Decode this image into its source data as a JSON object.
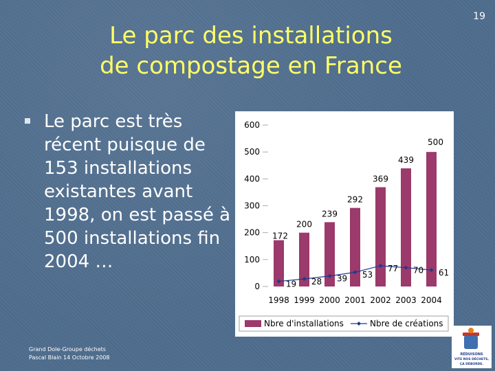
{
  "slide_number": "19",
  "title_line1": "Le parc des installations",
  "title_line2": "de compostage en France",
  "bullet": "Le parc est très récent puisque de 153 installations existantes avant 1998, on est passé à 500 installations fin 2004 …",
  "footer_line1": "Grand Dole-Groupe déchets",
  "footer_line2": "Pascal Blain 14 Octobre 2008",
  "logo": {
    "line1": "RÉDUISONS",
    "line2": "VITE NOS DÉCHETS,",
    "line3": "ÇA DÉBORDE."
  },
  "colors": {
    "title": "#ffff66",
    "bars": "#9b3a6b",
    "line": "#1f3a8c",
    "background": "#4f6d8e"
  },
  "chart_data": {
    "type": "bar",
    "categories": [
      "1998",
      "1999",
      "2000",
      "2001",
      "2002",
      "2003",
      "2004"
    ],
    "series": [
      {
        "name": "Nbre d'installations",
        "type": "bar",
        "values": [
          172,
          200,
          239,
          292,
          369,
          439,
          500
        ]
      },
      {
        "name": "Nbre de créations",
        "type": "line",
        "values": [
          19,
          28,
          39,
          53,
          77,
          70,
          61
        ]
      }
    ],
    "y_ticks": [
      "0",
      "100",
      "200",
      "300",
      "400",
      "500",
      "600"
    ],
    "ylim": [
      0,
      600
    ],
    "legend_position": "bottom"
  }
}
